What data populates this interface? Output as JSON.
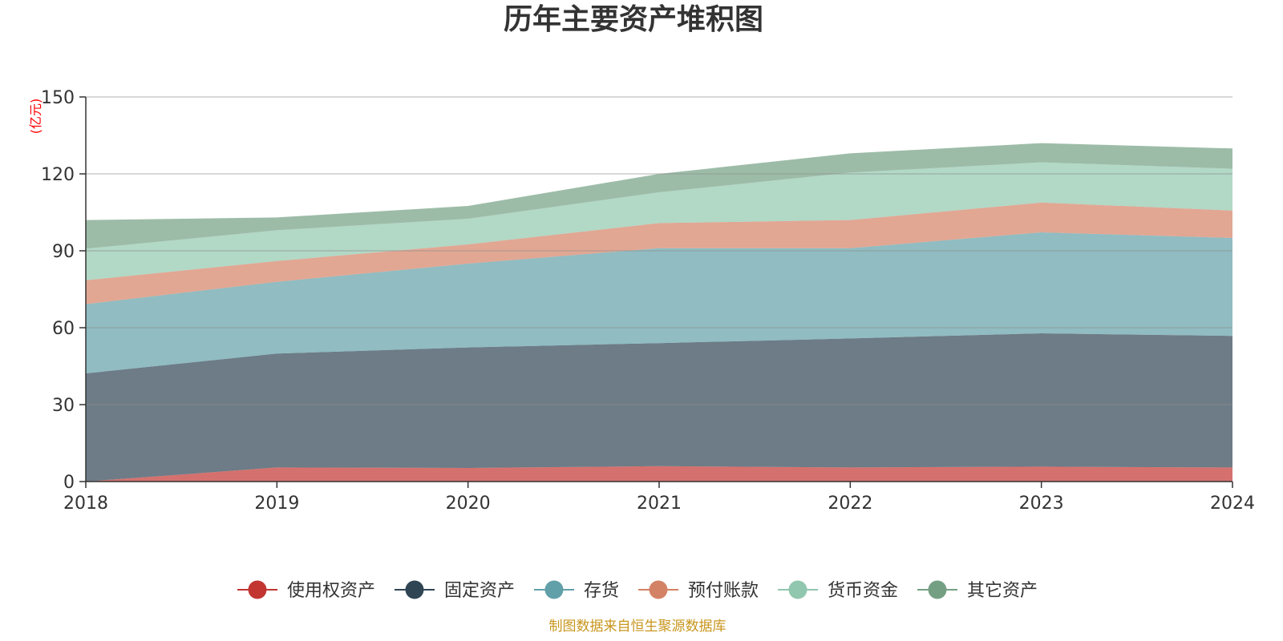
{
  "chart_data": {
    "type": "area",
    "stacked": true,
    "title": "历年主要资产堆积图",
    "unit_label": "(亿元)",
    "source": "制图数据来自恒生聚源数据库",
    "x": [
      "2018",
      "2019",
      "2020",
      "2021",
      "2022",
      "2023",
      "2024"
    ],
    "ylim": [
      0,
      150
    ],
    "yticks": [
      0,
      30,
      60,
      90,
      120,
      150
    ],
    "grid": true,
    "legend_position": "bottom",
    "series": [
      {
        "name": "使用权资产",
        "color": "#c23531",
        "values": [
          0,
          5.5,
          5.3,
          6.0,
          5.5,
          5.8,
          5.5
        ]
      },
      {
        "name": "固定资产",
        "color": "#2f4554",
        "values": [
          42.2,
          44.4,
          47.0,
          48.0,
          50.3,
          52.0,
          51.3
        ]
      },
      {
        "name": "存货",
        "color": "#61a0a8",
        "values": [
          27.0,
          28.0,
          32.7,
          37.0,
          35.2,
          39.4,
          38.2
        ]
      },
      {
        "name": "预付账款",
        "color": "#d48265",
        "values": [
          9.3,
          8.1,
          7.5,
          9.8,
          11.0,
          11.6,
          10.7
        ]
      },
      {
        "name": "货币资金",
        "color": "#91c7ae",
        "values": [
          12.3,
          12.0,
          10.0,
          12.0,
          18.5,
          15.7,
          16.3
        ]
      },
      {
        "name": "其它资产",
        "color": "#749f83",
        "values": [
          11.2,
          5.0,
          5.0,
          7.2,
          7.5,
          7.5,
          7.9
        ]
      }
    ]
  }
}
